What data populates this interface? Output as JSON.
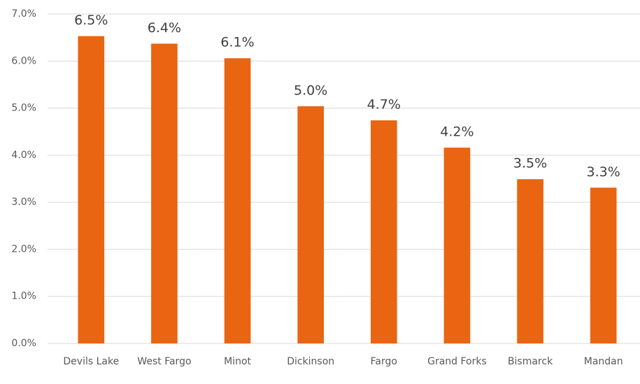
{
  "chart_data": {
    "type": "bar",
    "categories": [
      "Devils Lake",
      "West Fargo",
      "Minot",
      "Dickinson",
      "Fargo",
      "Grand Forks",
      "Bismarck",
      "Mandan"
    ],
    "values": [
      6.53,
      6.37,
      6.06,
      5.04,
      4.74,
      4.16,
      3.49,
      3.31
    ],
    "value_labels": [
      "6.5%",
      "6.4%",
      "6.1%",
      "5.0%",
      "4.7%",
      "4.2%",
      "3.5%",
      "3.3%"
    ],
    "color": "#ea6512",
    "ylim": [
      0,
      7
    ],
    "yticks": [
      {
        "value": 0,
        "label": "0.0%"
      },
      {
        "value": 1,
        "label": "1.0%"
      },
      {
        "value": 2,
        "label": "2.0%"
      },
      {
        "value": 3,
        "label": "3.0%"
      },
      {
        "value": 4,
        "label": "4.0%"
      },
      {
        "value": 5,
        "label": "5.0%"
      },
      {
        "value": 6,
        "label": "6.0%"
      },
      {
        "value": 7,
        "label": "7.0%"
      }
    ],
    "grid": true
  }
}
